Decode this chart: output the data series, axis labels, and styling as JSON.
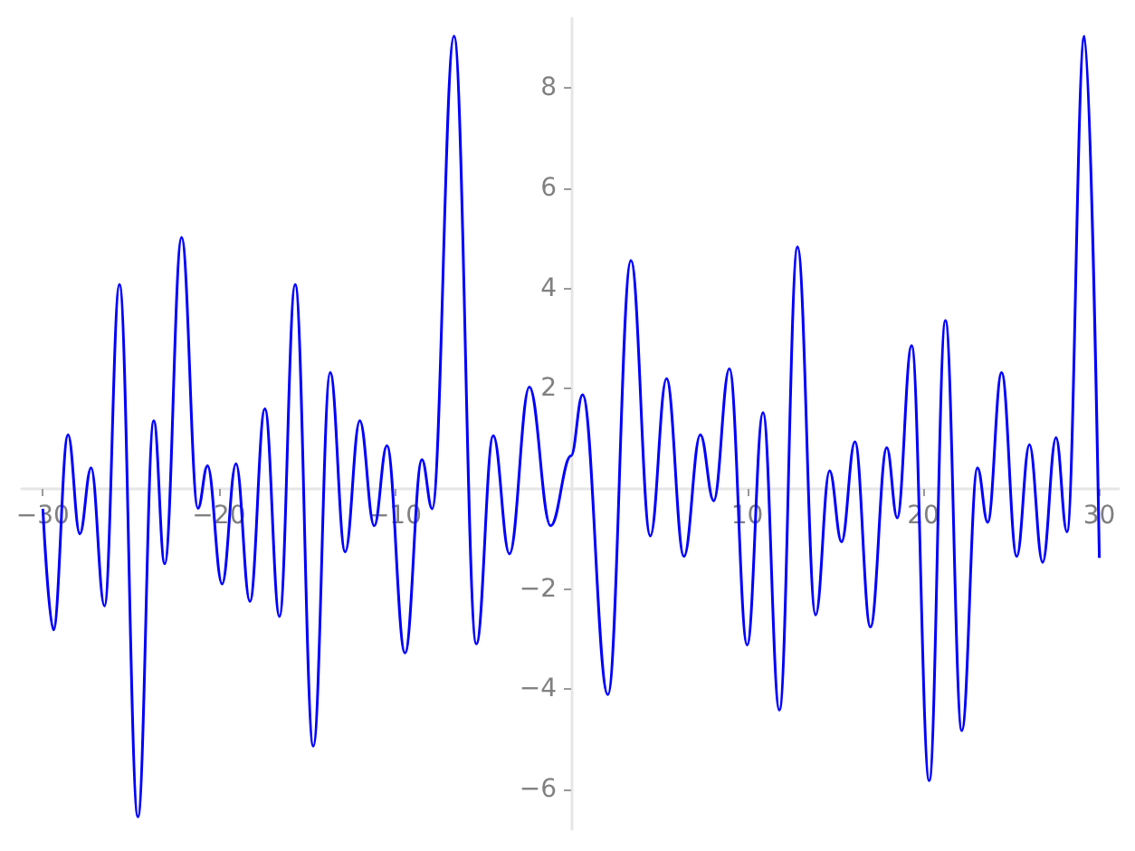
{
  "chart_data": {
    "type": "line",
    "x": [
      -30,
      -29.4,
      -28.57,
      -27.9,
      -27.26,
      -26.5,
      -25.65,
      -24.6,
      -23.7,
      -23.08,
      -22.12,
      -21.19,
      -20.65,
      -19.82,
      -19.03,
      -18.24,
      -17.39,
      -16.56,
      -15.67,
      -14.64,
      -13.68,
      -12.83,
      -12.0,
      -11.18,
      -10.46,
      -9.43,
      -8.47,
      -7.89,
      -6.65,
      -5.38,
      -4.42,
      -3.5,
      -2.37,
      -1.16,
      0,
      0.65,
      2.09,
      3.4,
      4.5,
      5.42,
      6.41,
      7.34,
      8.1,
      8.99,
      10.0,
      10.9,
      11.83,
      12.86,
      13.89,
      14.68,
      15.36,
      16.12,
      17.0,
      17.93,
      18.52,
      19.34,
      20.34,
      21.26,
      22.19,
      23.08,
      23.66,
      24.45,
      25.31,
      26.03,
      26.78,
      27.54,
      28.16,
      29.15,
      30
    ],
    "series": [
      {
        "color": "#0000ff",
        "values": [
          -0.4,
          -2.82,
          1.08,
          -0.9,
          0.42,
          -2.34,
          4.08,
          -6.55,
          1.36,
          -1.5,
          5.02,
          -0.39,
          0.46,
          -1.9,
          0.5,
          -2.25,
          1.6,
          -2.55,
          4.08,
          -5.14,
          2.32,
          -1.26,
          1.36,
          -0.74,
          0.86,
          -3.28,
          0.58,
          -0.4,
          9.04,
          -3.1,
          1.06,
          -1.3,
          2.03,
          -0.74,
          0.66,
          1.88,
          -4.11,
          4.56,
          -0.94,
          2.2,
          -1.35,
          1.08,
          -0.24,
          2.4,
          -3.12,
          1.52,
          -4.42,
          4.83,
          -2.52,
          0.36,
          -1.06,
          0.94,
          -2.76,
          0.82,
          -0.58,
          2.86,
          -5.83,
          3.36,
          -4.83,
          0.42,
          -0.67,
          2.32,
          -1.35,
          0.88,
          -1.47,
          1.02,
          -0.86,
          9.04,
          -1.38
        ]
      }
    ],
    "xlim": [
      -31.2,
      31.1
    ],
    "ylim": [
      -6.8,
      9.4
    ],
    "xticks": [
      -30,
      -20,
      -10,
      10,
      20,
      30
    ],
    "yticks": [
      -6,
      -4,
      -2,
      2,
      4,
      6,
      8
    ],
    "grid": false,
    "marker": "none",
    "line_style": "solid"
  }
}
